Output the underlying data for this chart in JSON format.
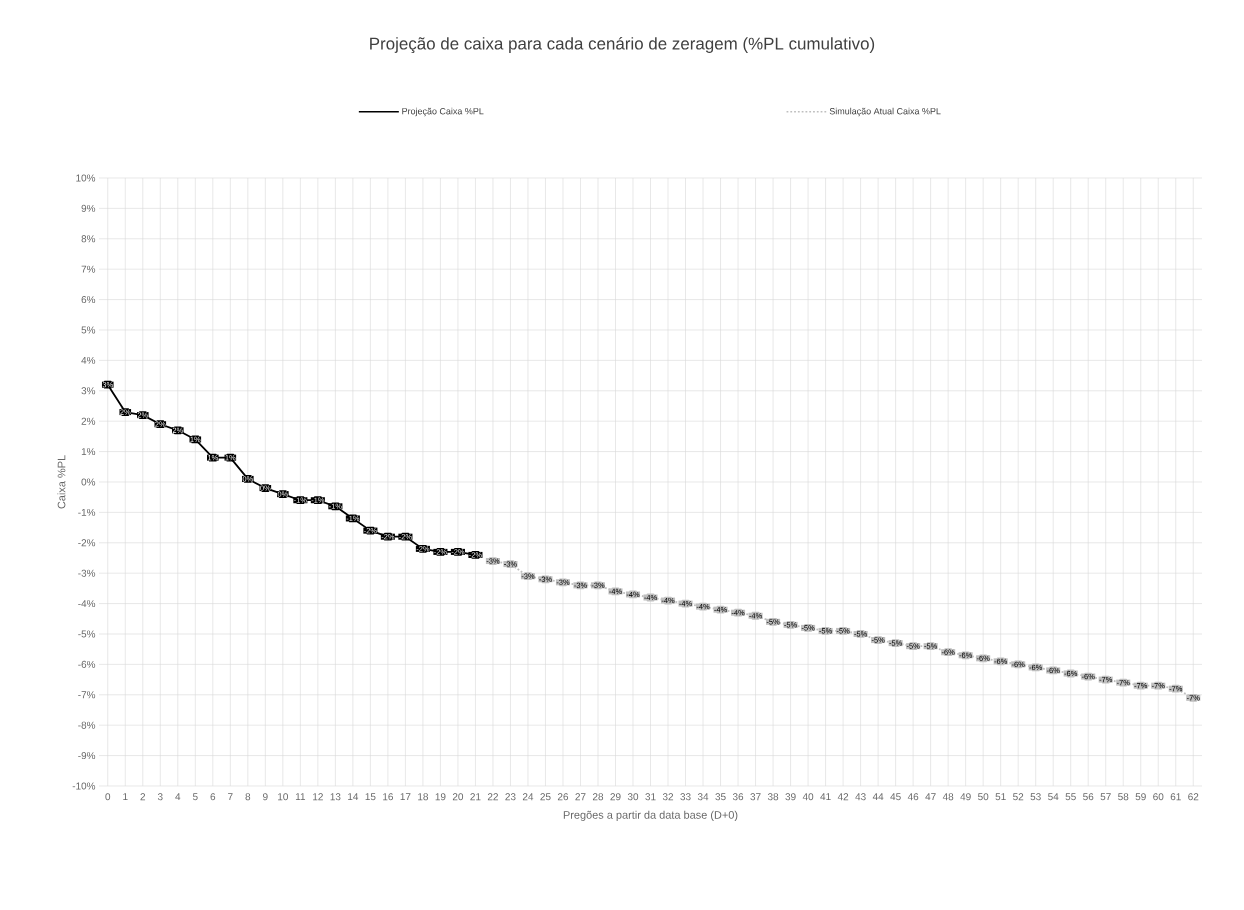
{
  "chart_data": {
    "type": "line",
    "title": "Projeção de caixa para cada cenário de zeragem (%PL cumulativo)",
    "xlabel": "Pregões a partir da data base (D+0)",
    "ylabel": "Caixa %PL",
    "categories": [
      "0",
      "1",
      "2",
      "3",
      "4",
      "5",
      "6",
      "7",
      "8",
      "9",
      "10",
      "11",
      "12",
      "13",
      "14",
      "15",
      "16",
      "17",
      "18",
      "19",
      "20",
      "21",
      "22",
      "23",
      "24",
      "25",
      "26",
      "27",
      "28",
      "29",
      "30",
      "31",
      "32",
      "33",
      "34",
      "35",
      "36",
      "37",
      "38",
      "39",
      "40",
      "41",
      "42",
      "43",
      "44",
      "45",
      "46",
      "47",
      "48",
      "49",
      "50",
      "51",
      "52",
      "53",
      "54",
      "55",
      "56",
      "57",
      "58",
      "59",
      "60",
      "61",
      "62"
    ],
    "ylim": [
      -10,
      10
    ],
    "yticks": [
      {
        "value": -10,
        "label": "-10%"
      },
      {
        "value": -9,
        "label": "-9%"
      },
      {
        "value": -8,
        "label": "-8%"
      },
      {
        "value": -7,
        "label": "-7%"
      },
      {
        "value": -6,
        "label": "-6%"
      },
      {
        "value": -5,
        "label": "-5%"
      },
      {
        "value": -4,
        "label": "-4%"
      },
      {
        "value": -3,
        "label": "-3%"
      },
      {
        "value": -2,
        "label": "-2%"
      },
      {
        "value": -1,
        "label": "-1%"
      },
      {
        "value": 0,
        "label": "0%"
      },
      {
        "value": 1,
        "label": "1%"
      },
      {
        "value": 2,
        "label": "2%"
      },
      {
        "value": 3,
        "label": "3%"
      },
      {
        "value": 4,
        "label": "4%"
      },
      {
        "value": 5,
        "label": "5%"
      },
      {
        "value": 6,
        "label": "6%"
      },
      {
        "value": 7,
        "label": "7%"
      },
      {
        "value": 8,
        "label": "8%"
      },
      {
        "value": 9,
        "label": "9%"
      },
      {
        "value": 10,
        "label": "10%"
      }
    ],
    "grid": true,
    "legend": "top",
    "marker": "square",
    "series": [
      {
        "name": "Projeção Caixa %PL",
        "color": "#000000",
        "line_style": "solid",
        "values": [
          3.2,
          2.3,
          2.2,
          1.9,
          1.7,
          1.4,
          0.8,
          0.8,
          0.1,
          -0.2,
          -0.4,
          -0.6,
          -0.6,
          -0.8,
          -1.2,
          -1.6,
          -1.8,
          -1.8,
          -2.2,
          -2.3,
          -2.3,
          -2.4,
          null,
          null,
          null,
          null,
          null,
          null,
          null,
          null,
          null,
          null,
          null,
          null,
          null,
          null,
          null,
          null,
          null,
          null,
          null,
          null,
          null,
          null,
          null,
          null,
          null,
          null,
          null,
          null,
          null,
          null,
          null,
          null,
          null,
          null,
          null,
          null,
          null,
          null,
          null,
          null,
          null
        ],
        "value_labels": [
          "3%",
          "2%",
          "2%",
          "2%",
          "2%",
          "1%",
          "1%",
          "1%",
          "0%",
          "0%",
          "0%",
          "-1%",
          "-1%",
          "-1%",
          "-1%",
          "-2%",
          "-2%",
          "-2%",
          "-2%",
          "-2%",
          "-2%",
          "-2%",
          null,
          null,
          null,
          null,
          null,
          null,
          null,
          null,
          null,
          null,
          null,
          null,
          null,
          null,
          null,
          null,
          null,
          null,
          null,
          null,
          null,
          null,
          null,
          null,
          null,
          null,
          null,
          null,
          null,
          null,
          null,
          null,
          null,
          null,
          null,
          null,
          null,
          null,
          null,
          null,
          null
        ]
      },
      {
        "name": "Simulação Atual Caixa %PL",
        "color": "#bfbfbf",
        "line_style": "dotted",
        "values": [
          null,
          null,
          null,
          null,
          null,
          null,
          null,
          null,
          null,
          null,
          null,
          null,
          null,
          null,
          null,
          null,
          null,
          null,
          null,
          null,
          null,
          null,
          -2.6,
          -2.7,
          -3.1,
          -3.2,
          -3.3,
          -3.4,
          -3.4,
          -3.6,
          -3.7,
          -3.8,
          -3.9,
          -4.0,
          -4.1,
          -4.2,
          -4.3,
          -4.4,
          -4.6,
          -4.7,
          -4.8,
          -4.9,
          -4.9,
          -5.0,
          -5.2,
          -5.3,
          -5.4,
          -5.4,
          -5.6,
          -5.7,
          -5.8,
          -5.9,
          -6.0,
          -6.1,
          -6.2,
          -6.3,
          -6.4,
          -6.5,
          -6.6,
          -6.7,
          -6.7,
          -6.8,
          -7.1
        ],
        "value_labels": [
          null,
          null,
          null,
          null,
          null,
          null,
          null,
          null,
          null,
          null,
          null,
          null,
          null,
          null,
          null,
          null,
          null,
          null,
          null,
          null,
          null,
          null,
          "-3%",
          "-3%",
          "-3%",
          "-3%",
          "-3%",
          "-3%",
          "-3%",
          "-4%",
          "-4%",
          "-4%",
          "-4%",
          "-4%",
          "-4%",
          "-4%",
          "-4%",
          "-4%",
          "-5%",
          "-5%",
          "-5%",
          "-5%",
          "-5%",
          "-5%",
          "-5%",
          "-5%",
          "-5%",
          "-5%",
          "-6%",
          "-6%",
          "-6%",
          "-6%",
          "-6%",
          "-6%",
          "-6%",
          "-6%",
          "-6%",
          "-7%",
          "-7%",
          "-7%",
          "-7%",
          "-7%",
          "-7%"
        ]
      }
    ]
  }
}
